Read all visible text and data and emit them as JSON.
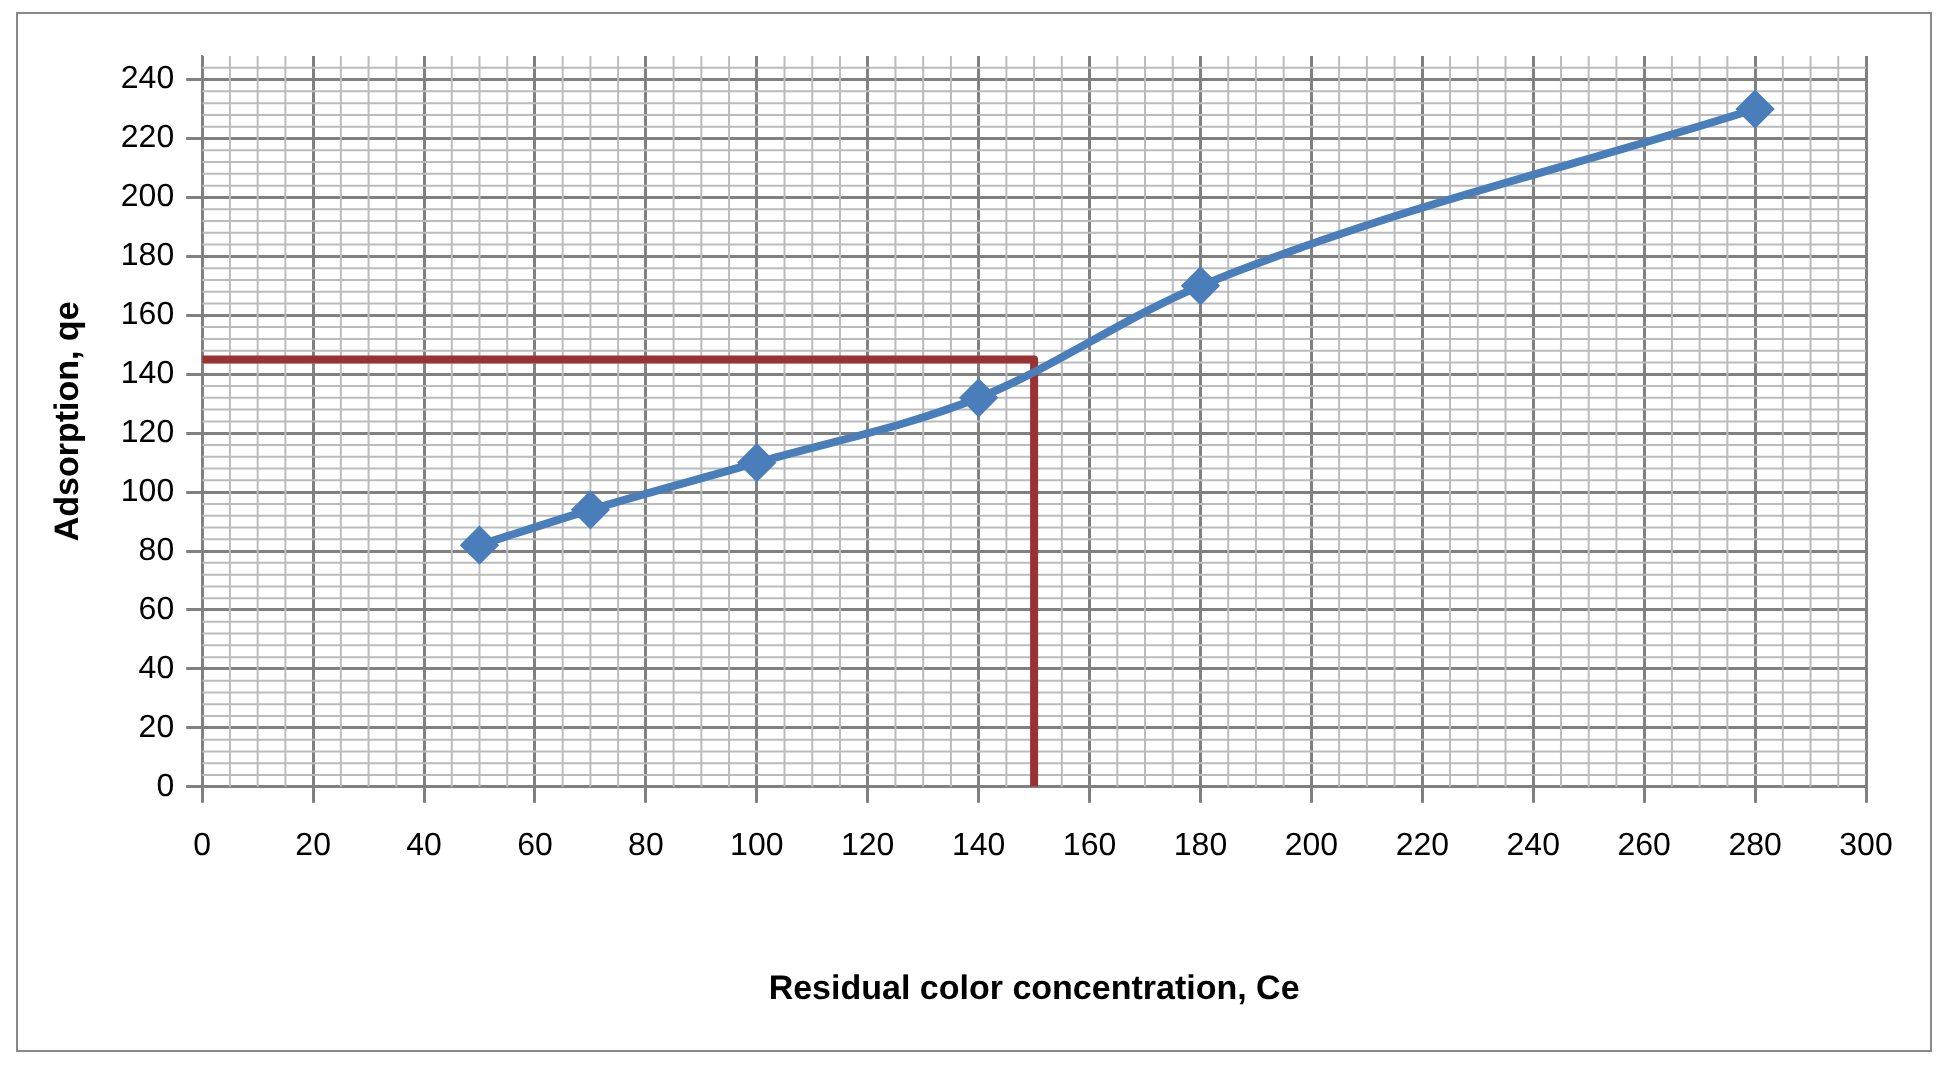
{
  "chart_data": {
    "type": "line",
    "xlabel": "Residual color concentration, Ce",
    "ylabel": "Adsorption, qe",
    "series": [
      {
        "color": "#4a7ebb",
        "x": [
          50,
          70,
          100,
          140,
          180,
          280
        ],
        "values": [
          82,
          94,
          110,
          132,
          170,
          230
        ],
        "marker": "diamond"
      },
      {
        "color": "#993333",
        "x": [
          0,
          150,
          150
        ],
        "values": [
          145,
          145,
          0
        ],
        "marker": "none"
      }
    ],
    "xlim": [
      0,
      300
    ],
    "xticks": [
      0,
      20,
      40,
      60,
      80,
      100,
      120,
      140,
      160,
      180,
      200,
      220,
      240,
      260,
      280,
      300
    ],
    "ylim": [
      0,
      248
    ],
    "yticks": [
      0,
      20,
      40,
      60,
      80,
      100,
      120,
      140,
      160,
      180,
      200,
      220,
      240
    ],
    "grid": true,
    "legend": false,
    "line_style": "solid"
  }
}
